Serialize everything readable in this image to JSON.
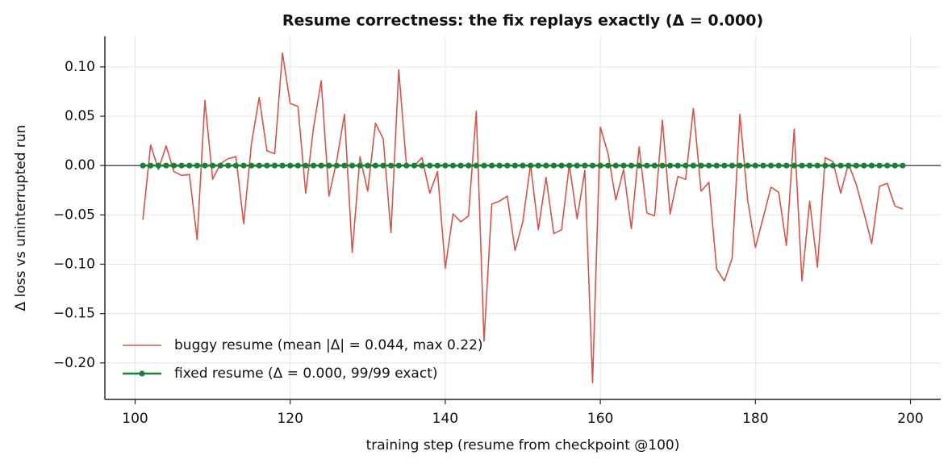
{
  "chart_data": {
    "type": "line",
    "title": "Resume correctness: the fix replays exactly (Δ = 0.000)",
    "xlabel": "training step (resume from checkpoint @100)",
    "ylabel": "Δ loss vs uninterrupted run",
    "x": [
      101,
      102,
      103,
      104,
      105,
      106,
      107,
      108,
      109,
      110,
      111,
      112,
      113,
      114,
      115,
      116,
      117,
      118,
      119,
      120,
      121,
      122,
      123,
      124,
      125,
      126,
      127,
      128,
      129,
      130,
      131,
      132,
      133,
      134,
      135,
      136,
      137,
      138,
      139,
      140,
      141,
      142,
      143,
      144,
      145,
      146,
      147,
      148,
      149,
      150,
      151,
      152,
      153,
      154,
      155,
      156,
      157,
      158,
      159,
      160,
      161,
      162,
      163,
      164,
      165,
      166,
      167,
      168,
      169,
      170,
      171,
      172,
      173,
      174,
      175,
      176,
      177,
      178,
      179,
      180,
      181,
      182,
      183,
      184,
      185,
      186,
      187,
      188,
      189,
      190,
      191,
      192,
      193,
      194,
      195,
      196,
      197,
      198,
      199
    ],
    "series": [
      {
        "name": "buggy resume  (mean |Δ| = 0.044, max 0.22)",
        "color": "#dc5248",
        "marker": false,
        "values": [
          -0.055,
          0.021,
          -0.004,
          0.02,
          -0.006,
          -0.01,
          -0.009,
          -0.075,
          0.066,
          -0.014,
          0.002,
          0.007,
          0.009,
          -0.059,
          0.022,
          0.069,
          0.015,
          0.012,
          0.114,
          0.063,
          0.06,
          -0.028,
          0.038,
          0.086,
          -0.031,
          0.005,
          0.052,
          -0.088,
          0.009,
          -0.026,
          0.043,
          0.027,
          -0.068,
          0.097,
          0.0,
          0.0,
          0.008,
          -0.028,
          -0.006,
          -0.104,
          -0.049,
          -0.057,
          -0.051,
          0.055,
          -0.178,
          -0.039,
          -0.036,
          -0.031,
          -0.086,
          -0.057,
          0.001,
          -0.065,
          -0.012,
          -0.069,
          -0.065,
          0.001,
          -0.054,
          -0.005,
          -0.22,
          0.039,
          0.012,
          -0.035,
          -0.004,
          -0.064,
          0.019,
          -0.048,
          -0.051,
          0.046,
          -0.049,
          -0.011,
          -0.014,
          0.058,
          -0.026,
          -0.017,
          -0.105,
          -0.117,
          -0.094,
          0.052,
          -0.035,
          -0.083,
          -0.053,
          -0.022,
          -0.027,
          -0.081,
          0.037,
          -0.117,
          -0.036,
          -0.103,
          0.008,
          0.004,
          -0.028,
          0.002,
          -0.019,
          -0.048,
          -0.079,
          -0.021,
          -0.018,
          -0.041,
          -0.044
        ]
      },
      {
        "name": "fixed resume  (Δ = 0.000, 99/99 exact)",
        "color": "#1a7f37",
        "marker": true,
        "values": [
          0,
          0,
          0,
          0,
          0,
          0,
          0,
          0,
          0,
          0,
          0,
          0,
          0,
          0,
          0,
          0,
          0,
          0,
          0,
          0,
          0,
          0,
          0,
          0,
          0,
          0,
          0,
          0,
          0,
          0,
          0,
          0,
          0,
          0,
          0,
          0,
          0,
          0,
          0,
          0,
          0,
          0,
          0,
          0,
          0,
          0,
          0,
          0,
          0,
          0,
          0,
          0,
          0,
          0,
          0,
          0,
          0,
          0,
          0,
          0,
          0,
          0,
          0,
          0,
          0,
          0,
          0,
          0,
          0,
          0,
          0,
          0,
          0,
          0,
          0,
          0,
          0,
          0,
          0,
          0,
          0,
          0,
          0,
          0,
          0,
          0,
          0,
          0,
          0,
          0,
          0,
          0,
          0,
          0,
          0,
          0,
          0,
          0,
          0
        ]
      }
    ],
    "xlim": [
      96.1,
      203.9
    ],
    "ylim": [
      -0.237,
      0.131
    ],
    "xticks": [
      100,
      120,
      140,
      160,
      180,
      200
    ],
    "yticks": [
      {
        "value": -0.2,
        "label": "−0.20"
      },
      {
        "value": -0.15,
        "label": "−0.15"
      },
      {
        "value": -0.1,
        "label": "−0.10"
      },
      {
        "value": -0.05,
        "label": "−0.05"
      },
      {
        "value": 0,
        "label": "0.00"
      },
      {
        "value": 0.05,
        "label": "0.05"
      },
      {
        "value": 0.1,
        "label": "0.10"
      }
    ],
    "grid": true,
    "legend": "lower left"
  }
}
